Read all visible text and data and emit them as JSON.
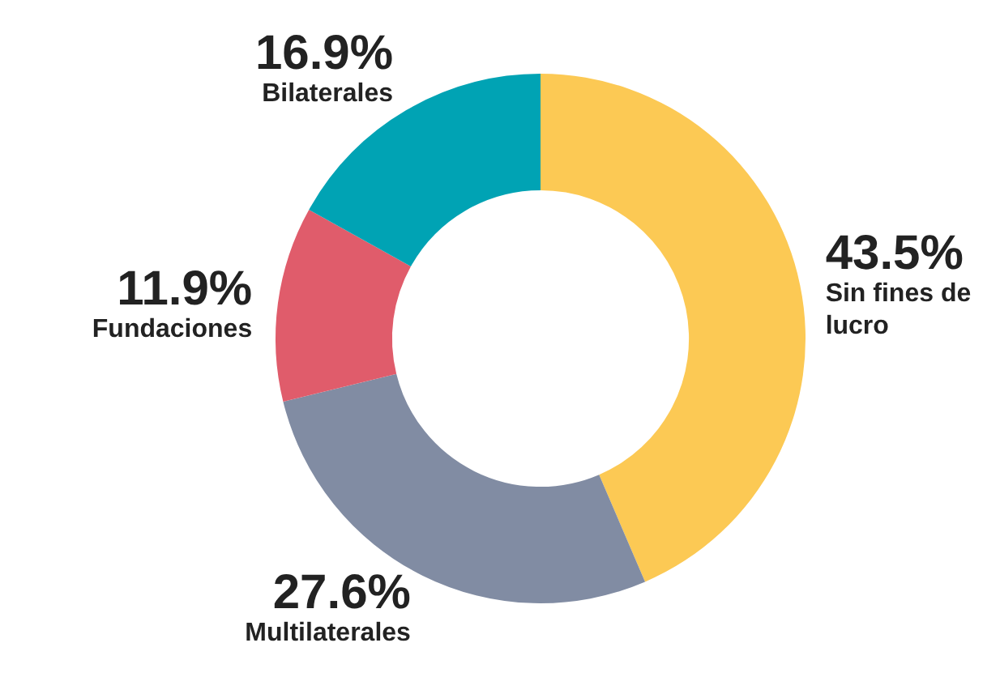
{
  "chart_data": {
    "type": "donut",
    "categories": [
      "Sin fines de lucro",
      "Multilaterales",
      "Fundaciones",
      "Bilaterales"
    ],
    "values": [
      43.5,
      27.6,
      11.9,
      16.9
    ],
    "colors": [
      "#fcc954",
      "#818ca3",
      "#e05c6b",
      "#00a3b4"
    ],
    "value_labels": [
      "43.5%",
      "27.6%",
      "11.9%",
      "16.9%"
    ],
    "legend": false
  }
}
